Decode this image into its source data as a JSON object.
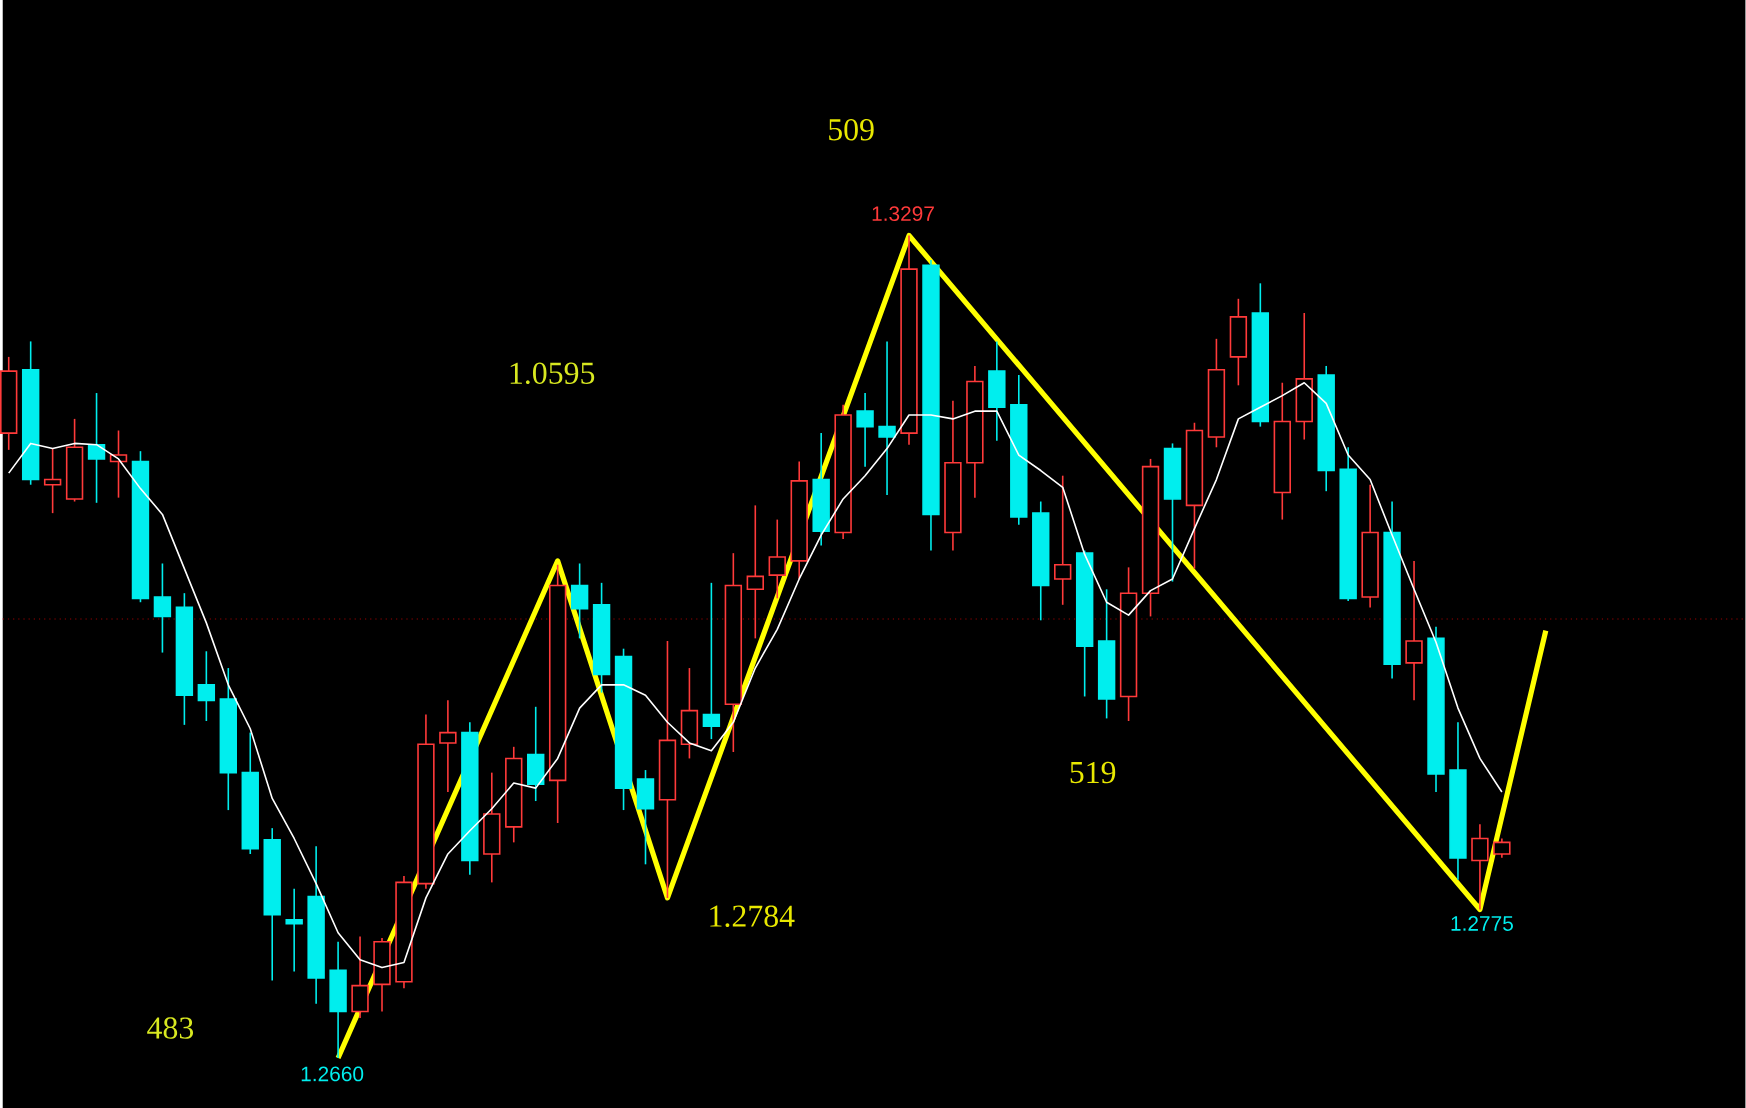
{
  "chart_data": {
    "type": "candlestick",
    "categories": [
      null,
      null,
      null,
      null,
      null,
      null,
      null,
      null,
      null,
      null,
      null,
      null,
      null,
      null,
      null,
      null,
      null,
      null,
      null,
      null,
      null,
      null,
      null,
      null,
      null,
      null,
      null,
      null,
      null,
      null,
      null,
      null,
      null,
      null,
      null,
      null,
      null,
      null,
      null,
      null,
      null,
      null,
      null,
      null,
      null,
      null,
      null,
      null,
      null,
      null,
      null,
      null,
      null,
      null,
      null,
      null,
      null,
      null,
      null,
      null,
      null,
      null,
      null,
      null,
      null,
      null,
      null,
      null,
      null,
      null,
      null
    ],
    "ohlc": [
      [
        1.3144,
        1.3203,
        1.3131,
        1.3192
      ],
      [
        1.3193,
        1.3215,
        1.3104,
        1.3108
      ],
      [
        1.3104,
        1.3132,
        1.3082,
        1.3108
      ],
      [
        1.3093,
        1.3155,
        1.3091,
        1.3133
      ],
      [
        1.3135,
        1.3175,
        1.309,
        1.3124
      ],
      [
        1.3122,
        1.3146,
        1.3094,
        1.3127
      ],
      [
        1.3122,
        1.313,
        1.3013,
        1.3016
      ],
      [
        1.3017,
        1.3043,
        1.2974,
        1.3002
      ],
      [
        1.3009,
        1.302,
        1.2918,
        1.2941
      ],
      [
        1.2949,
        1.2975,
        1.2921,
        1.2937
      ],
      [
        1.2938,
        1.2962,
        1.2852,
        1.2881
      ],
      [
        1.2881,
        1.2912,
        1.2818,
        1.2822
      ],
      [
        1.2829,
        1.2838,
        1.272,
        1.2771
      ],
      [
        1.2767,
        1.2791,
        1.2727,
        1.2764
      ],
      [
        1.2785,
        1.2824,
        1.2702,
        1.2722
      ],
      [
        1.2728,
        1.275,
        1.266,
        1.2696
      ],
      [
        1.2696,
        1.2754,
        1.2691,
        1.2716
      ],
      [
        1.2717,
        1.2753,
        1.2696,
        1.275
      ],
      [
        1.2719,
        1.2801,
        1.2714,
        1.2796
      ],
      [
        1.2795,
        1.2926,
        1.2791,
        1.2903
      ],
      [
        1.2904,
        1.2937,
        1.2866,
        1.2912
      ],
      [
        1.2912,
        1.292,
        1.2802,
        1.2813
      ],
      [
        1.2818,
        1.2881,
        1.2796,
        1.2849
      ],
      [
        1.2839,
        1.2901,
        1.2827,
        1.2892
      ],
      [
        1.2895,
        1.2932,
        1.2859,
        1.2872
      ],
      [
        1.2875,
        1.3042,
        1.2842,
        1.3026
      ],
      [
        1.3026,
        1.3043,
        1.2985,
        1.3008
      ],
      [
        1.3011,
        1.3028,
        1.2943,
        1.2957
      ],
      [
        1.2971,
        1.2977,
        1.2852,
        1.2869
      ],
      [
        1.2876,
        1.2883,
        1.281,
        1.2853
      ],
      [
        1.286,
        1.2983,
        1.2784,
        1.2906
      ],
      [
        1.2903,
        1.2962,
        1.2892,
        1.2929
      ],
      [
        1.2926,
        1.3028,
        1.2907,
        1.2917
      ],
      [
        1.2934,
        1.3051,
        1.2897,
        1.3026
      ],
      [
        1.3023,
        1.3088,
        1.2985,
        1.3033
      ],
      [
        1.3034,
        1.3077,
        1.3016,
        1.3048
      ],
      [
        1.3045,
        1.3122,
        1.3031,
        1.3107
      ],
      [
        1.3108,
        1.3144,
        1.3057,
        1.3068
      ],
      [
        1.3067,
        1.3166,
        1.3062,
        1.3158
      ],
      [
        1.3161,
        1.3175,
        1.3118,
        1.3149
      ],
      [
        1.3149,
        1.3215,
        1.3096,
        1.3141
      ],
      [
        1.3144,
        1.3297,
        1.3135,
        1.3271
      ],
      [
        1.3274,
        1.3278,
        1.3053,
        1.3081
      ],
      [
        1.3067,
        1.3169,
        1.3053,
        1.3121
      ],
      [
        1.3121,
        1.3196,
        1.3094,
        1.3184
      ],
      [
        1.3192,
        1.3215,
        1.3138,
        1.3164
      ],
      [
        1.3166,
        1.3189,
        1.3073,
        1.3079
      ],
      [
        1.3082,
        1.3091,
        1.2999,
        1.3026
      ],
      [
        1.3031,
        1.3111,
        1.3011,
        1.3042
      ],
      [
        1.3051,
        1.3053,
        1.294,
        1.2979
      ],
      [
        1.2983,
        1.3023,
        1.2923,
        1.2938
      ],
      [
        1.294,
        1.304,
        1.2921,
        1.302
      ],
      [
        1.302,
        1.3124,
        1.3002,
        1.3118
      ],
      [
        1.3132,
        1.3136,
        1.3029,
        1.3093
      ],
      [
        1.3088,
        1.3152,
        1.3039,
        1.3146
      ],
      [
        1.3141,
        1.3217,
        1.3133,
        1.3193
      ],
      [
        1.3203,
        1.3248,
        1.3181,
        1.3234
      ],
      [
        1.3237,
        1.326,
        1.3149,
        1.3153
      ],
      [
        1.3098,
        1.3183,
        1.3077,
        1.3153
      ],
      [
        1.3153,
        1.3237,
        1.3139,
        1.3186
      ],
      [
        1.3189,
        1.3196,
        1.3099,
        1.3115
      ],
      [
        1.3116,
        1.3133,
        1.3014,
        1.3016
      ],
      [
        1.3017,
        1.3104,
        1.3009,
        1.3067
      ],
      [
        1.3067,
        1.3091,
        1.2954,
        1.2965
      ],
      [
        1.2966,
        1.3045,
        1.2937,
        1.2983
      ],
      [
        1.2985,
        1.2994,
        1.2866,
        1.288
      ],
      [
        1.2883,
        1.292,
        1.2798,
        1.2815
      ],
      [
        1.2813,
        1.2841,
        1.2775,
        1.283
      ],
      [
        1.2818,
        1.283,
        1.2815,
        1.2827
      ],
      null,
      null
    ],
    "series": [
      {
        "type": "line",
        "color": "#ffffff",
        "values": [
          1.3113,
          1.3136,
          1.3132,
          1.3136,
          1.3135,
          1.3124,
          1.3101,
          1.3081,
          1.3039,
          1.2997,
          1.2949,
          1.2915,
          1.2861,
          1.283,
          1.2795,
          1.2757,
          1.2736,
          1.273,
          1.2734,
          1.2784,
          1.2818,
          1.2836,
          1.2853,
          1.2873,
          1.2869,
          1.2892,
          1.2931,
          1.2949,
          1.2949,
          1.2941,
          1.292,
          1.2904,
          1.2898,
          1.292,
          1.2962,
          1.2992,
          1.3031,
          1.3065,
          1.3093,
          1.3111,
          1.3132,
          1.3158,
          1.3158,
          1.3155,
          1.3161,
          1.3161,
          1.3127,
          1.3115,
          1.3102,
          1.305,
          1.3013,
          1.3003,
          1.3022,
          1.3031,
          1.307,
          1.3108,
          1.3155,
          1.3164,
          1.3173,
          1.3183,
          1.3167,
          1.3127,
          1.3108,
          1.3065,
          1.3023,
          1.2982,
          1.2931,
          1.2892,
          1.2866,
          null,
          null
        ]
      },
      {
        "type": "line",
        "color": "#ffff00",
        "values": [
          null,
          null,
          null,
          null,
          null,
          null,
          null,
          null,
          null,
          null,
          null,
          null,
          null,
          null,
          null,
          1.266,
          null,
          null,
          null,
          null,
          null,
          null,
          null,
          null,
          null,
          1.3045,
          null,
          null,
          null,
          null,
          1.2784,
          null,
          null,
          null,
          null,
          null,
          null,
          null,
          null,
          null,
          null,
          1.3297,
          null,
          null,
          null,
          null,
          null,
          null,
          null,
          null,
          null,
          null,
          null,
          null,
          null,
          null,
          null,
          null,
          null,
          null,
          null,
          null,
          null,
          null,
          null,
          null,
          null,
          1.2775,
          null,
          null,
          1.2991
        ]
      }
    ],
    "ref_lines": [
      {
        "axis": "y",
        "value": 1.3,
        "color": "#990000",
        "line_style": "dotted"
      }
    ],
    "annotations": [
      "509",
      "1.0595",
      "519",
      "483",
      {
        "text": "1.3297",
        "y": 1.3297
      },
      "1.2784",
      {
        "text": "1.2775",
        "y": 1.2775
      },
      {
        "text": "1.2660",
        "y": 1.266
      }
    ]
  }
}
